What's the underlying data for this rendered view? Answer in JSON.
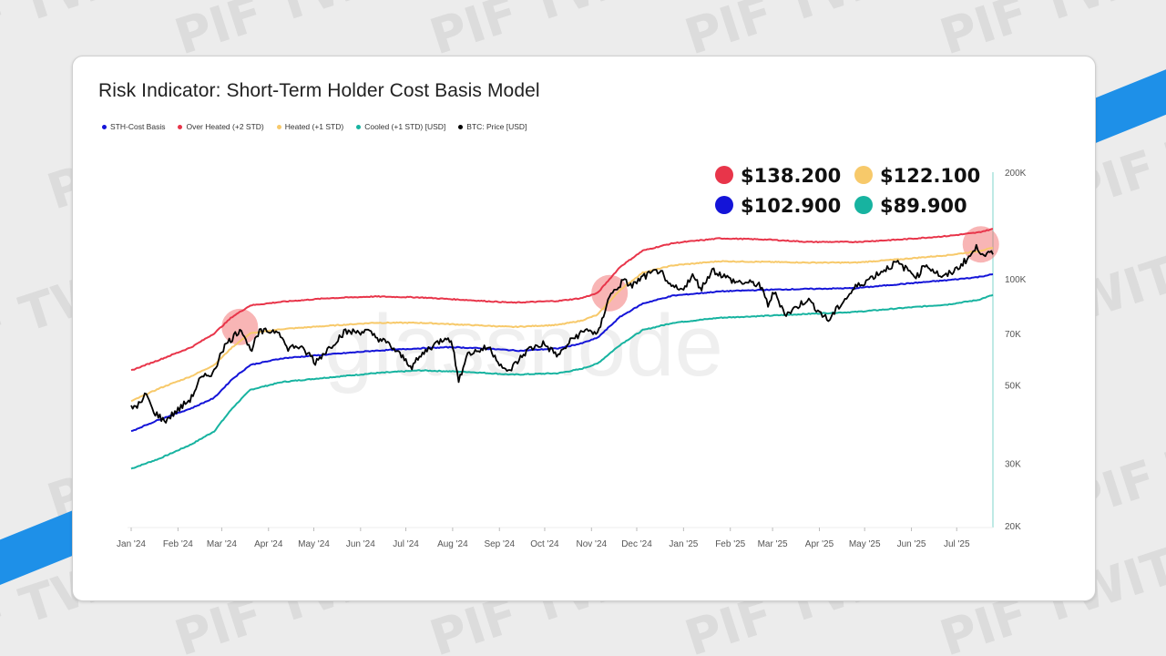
{
  "watermark_text": "PIF TWIT",
  "chart_data": {
    "type": "line",
    "title": "Risk Indicator: Short-Term Holder Cost Basis Model",
    "watermark": "glassnode",
    "y_scale": "log",
    "ylim": [
      20000,
      200000
    ],
    "y_ticks": [
      {
        "value": 200000,
        "label": "200K"
      },
      {
        "value": 100000,
        "label": "100K"
      },
      {
        "value": 70000,
        "label": "70K"
      },
      {
        "value": 50000,
        "label": "50K"
      },
      {
        "value": 30000,
        "label": "30K"
      },
      {
        "value": 20000,
        "label": "20K"
      }
    ],
    "x_range": [
      "2024-01-01",
      "2025-07-25"
    ],
    "x_ticks": [
      {
        "date": "2024-01-01",
        "label": "Jan '24"
      },
      {
        "date": "2024-02-01",
        "label": "Feb '24"
      },
      {
        "date": "2024-03-01",
        "label": "Mar '24"
      },
      {
        "date": "2024-04-01",
        "label": "Apr '24"
      },
      {
        "date": "2024-05-01",
        "label": "May '24"
      },
      {
        "date": "2024-06-01",
        "label": "Jun '24"
      },
      {
        "date": "2024-07-01",
        "label": "Jul '24"
      },
      {
        "date": "2024-08-01",
        "label": "Aug '24"
      },
      {
        "date": "2024-09-01",
        "label": "Sep '24"
      },
      {
        "date": "2024-10-01",
        "label": "Oct '24"
      },
      {
        "date": "2024-11-01",
        "label": "Nov '24"
      },
      {
        "date": "2024-12-01",
        "label": "Dec '24"
      },
      {
        "date": "2025-01-01",
        "label": "Jan '25"
      },
      {
        "date": "2025-02-01",
        "label": "Feb '25"
      },
      {
        "date": "2025-03-01",
        "label": "Mar '25"
      },
      {
        "date": "2025-04-01",
        "label": "Apr '25"
      },
      {
        "date": "2025-05-01",
        "label": "May '25"
      },
      {
        "date": "2025-06-01",
        "label": "Jun '25"
      },
      {
        "date": "2025-07-01",
        "label": "Jul '25"
      }
    ],
    "series": [
      {
        "name": "STH-Cost Basis",
        "color": "#1414d8",
        "key": "sth",
        "points": [
          [
            "2024-01-01",
            37000
          ],
          [
            "2024-01-20",
            40000
          ],
          [
            "2024-02-10",
            43000
          ],
          [
            "2024-02-25",
            46000
          ],
          [
            "2024-03-08",
            52000
          ],
          [
            "2024-03-20",
            57000
          ],
          [
            "2024-04-10",
            59500
          ],
          [
            "2024-05-10",
            61000
          ],
          [
            "2024-06-10",
            62500
          ],
          [
            "2024-07-10",
            63500
          ],
          [
            "2024-08-01",
            64000
          ],
          [
            "2024-08-20",
            63500
          ],
          [
            "2024-09-15",
            62500
          ],
          [
            "2024-10-10",
            63500
          ],
          [
            "2024-10-25",
            65500
          ],
          [
            "2024-11-05",
            68000
          ],
          [
            "2024-11-20",
            78000
          ],
          [
            "2024-12-05",
            85000
          ],
          [
            "2024-12-25",
            89500
          ],
          [
            "2025-01-25",
            92000
          ],
          [
            "2025-02-25",
            93000
          ],
          [
            "2025-03-25",
            93500
          ],
          [
            "2025-04-25",
            94000
          ],
          [
            "2025-05-25",
            96500
          ],
          [
            "2025-06-25",
            99000
          ],
          [
            "2025-07-15",
            101000
          ],
          [
            "2025-07-25",
            102900
          ]
        ]
      },
      {
        "name": "Over Heated (+2 STD)",
        "color": "#e8354a",
        "key": "over",
        "points": [
          [
            "2024-01-01",
            55000
          ],
          [
            "2024-01-20",
            59000
          ],
          [
            "2024-02-10",
            64000
          ],
          [
            "2024-02-25",
            70000
          ],
          [
            "2024-03-08",
            78000
          ],
          [
            "2024-03-20",
            84000
          ],
          [
            "2024-04-10",
            86000
          ],
          [
            "2024-05-10",
            88000
          ],
          [
            "2024-06-10",
            89000
          ],
          [
            "2024-07-10",
            88500
          ],
          [
            "2024-08-10",
            87000
          ],
          [
            "2024-09-10",
            85500
          ],
          [
            "2024-10-10",
            86500
          ],
          [
            "2024-10-25",
            88000
          ],
          [
            "2024-11-05",
            91000
          ],
          [
            "2024-11-20",
            108000
          ],
          [
            "2024-12-05",
            120000
          ],
          [
            "2024-12-25",
            126000
          ],
          [
            "2025-01-25",
            130000
          ],
          [
            "2025-02-25",
            129000
          ],
          [
            "2025-03-25",
            127000
          ],
          [
            "2025-04-25",
            127000
          ],
          [
            "2025-05-25",
            129000
          ],
          [
            "2025-06-25",
            132000
          ],
          [
            "2025-07-15",
            135000
          ],
          [
            "2025-07-25",
            138200
          ]
        ]
      },
      {
        "name": "Heated (+1 STD)",
        "color": "#f7c96a",
        "key": "heated",
        "points": [
          [
            "2024-01-01",
            45000
          ],
          [
            "2024-01-20",
            49000
          ],
          [
            "2024-02-10",
            53000
          ],
          [
            "2024-02-25",
            57000
          ],
          [
            "2024-03-08",
            64000
          ],
          [
            "2024-03-20",
            70000
          ],
          [
            "2024-04-10",
            72000
          ],
          [
            "2024-05-10",
            73500
          ],
          [
            "2024-06-10",
            75000
          ],
          [
            "2024-07-10",
            75000
          ],
          [
            "2024-08-10",
            74000
          ],
          [
            "2024-09-10",
            73000
          ],
          [
            "2024-10-10",
            74000
          ],
          [
            "2024-10-25",
            76000
          ],
          [
            "2024-11-05",
            79000
          ],
          [
            "2024-11-20",
            93000
          ],
          [
            "2024-12-05",
            104000
          ],
          [
            "2024-12-25",
            109000
          ],
          [
            "2025-01-25",
            112000
          ],
          [
            "2025-02-25",
            111500
          ],
          [
            "2025-03-25",
            111000
          ],
          [
            "2025-04-25",
            111000
          ],
          [
            "2025-05-25",
            113500
          ],
          [
            "2025-06-25",
            116500
          ],
          [
            "2025-07-15",
            119500
          ],
          [
            "2025-07-25",
            122100
          ]
        ]
      },
      {
        "name": "Cooled (+1 STD) [USD]",
        "color": "#17b3a0",
        "key": "cooled",
        "points": [
          [
            "2024-01-01",
            29000
          ],
          [
            "2024-01-20",
            31000
          ],
          [
            "2024-02-10",
            34000
          ],
          [
            "2024-02-25",
            37000
          ],
          [
            "2024-03-08",
            43000
          ],
          [
            "2024-03-20",
            48500
          ],
          [
            "2024-04-10",
            51000
          ],
          [
            "2024-05-10",
            52500
          ],
          [
            "2024-06-10",
            54000
          ],
          [
            "2024-07-10",
            55000
          ],
          [
            "2024-08-10",
            54500
          ],
          [
            "2024-09-10",
            53500
          ],
          [
            "2024-10-10",
            54000
          ],
          [
            "2024-10-25",
            55500
          ],
          [
            "2024-11-05",
            57500
          ],
          [
            "2024-11-20",
            65000
          ],
          [
            "2024-12-05",
            71500
          ],
          [
            "2024-12-25",
            75000
          ],
          [
            "2025-01-25",
            77500
          ],
          [
            "2025-02-25",
            78500
          ],
          [
            "2025-03-25",
            79500
          ],
          [
            "2025-04-25",
            80500
          ],
          [
            "2025-05-25",
            82500
          ],
          [
            "2025-06-25",
            84500
          ],
          [
            "2025-07-15",
            87000
          ],
          [
            "2025-07-25",
            89900
          ]
        ]
      },
      {
        "name": "BTC: Price [USD]",
        "color": "#000000",
        "key": "btc",
        "points": [
          [
            "2024-01-01",
            43000
          ],
          [
            "2024-01-08",
            44500
          ],
          [
            "2024-01-11",
            47500
          ],
          [
            "2024-01-15",
            42500
          ],
          [
            "2024-01-23",
            39500
          ],
          [
            "2024-02-01",
            42500
          ],
          [
            "2024-02-10",
            46000
          ],
          [
            "2024-02-15",
            51500
          ],
          [
            "2024-02-26",
            55000
          ],
          [
            "2024-02-29",
            62000
          ],
          [
            "2024-03-05",
            66000
          ],
          [
            "2024-03-08",
            68000
          ],
          [
            "2024-03-14",
            72500
          ],
          [
            "2024-03-20",
            62500
          ],
          [
            "2024-03-26",
            70500
          ],
          [
            "2024-04-08",
            71500
          ],
          [
            "2024-04-13",
            63500
          ],
          [
            "2024-04-20",
            64500
          ],
          [
            "2024-04-30",
            60000
          ],
          [
            "2024-05-01",
            57500
          ],
          [
            "2024-05-10",
            63000
          ],
          [
            "2024-05-21",
            70500
          ],
          [
            "2024-06-05",
            71000
          ],
          [
            "2024-06-20",
            65000
          ],
          [
            "2024-07-05",
            56500
          ],
          [
            "2024-07-15",
            63000
          ],
          [
            "2024-07-29",
            69000
          ],
          [
            "2024-08-02",
            62000
          ],
          [
            "2024-08-05",
            50500
          ],
          [
            "2024-08-10",
            61000
          ],
          [
            "2024-08-25",
            64000
          ],
          [
            "2024-09-06",
            54000
          ],
          [
            "2024-09-20",
            63000
          ],
          [
            "2024-09-30",
            65500
          ],
          [
            "2024-10-10",
            60500
          ],
          [
            "2024-10-20",
            68000
          ],
          [
            "2024-10-30",
            72000
          ],
          [
            "2024-11-05",
            69000
          ],
          [
            "2024-11-08",
            76000
          ],
          [
            "2024-11-12",
            88000
          ],
          [
            "2024-11-22",
            98500
          ],
          [
            "2024-11-28",
            95500
          ],
          [
            "2024-12-05",
            101000
          ],
          [
            "2024-12-17",
            106000
          ],
          [
            "2024-12-20",
            97000
          ],
          [
            "2024-12-30",
            92500
          ],
          [
            "2025-01-07",
            101500
          ],
          [
            "2025-01-13",
            94000
          ],
          [
            "2025-01-20",
            106000
          ],
          [
            "2025-01-27",
            102000
          ],
          [
            "2025-02-04",
            98000
          ],
          [
            "2025-02-20",
            96500
          ],
          [
            "2025-02-26",
            84500
          ],
          [
            "2025-03-02",
            91500
          ],
          [
            "2025-03-10",
            79000
          ],
          [
            "2025-03-24",
            87500
          ],
          [
            "2025-04-07",
            76000
          ],
          [
            "2025-04-15",
            84500
          ],
          [
            "2025-04-25",
            94500
          ],
          [
            "2025-05-10",
            103500
          ],
          [
            "2025-05-22",
            111000
          ],
          [
            "2025-06-05",
            101500
          ],
          [
            "2025-06-10",
            110000
          ],
          [
            "2025-06-22",
            100500
          ],
          [
            "2025-07-01",
            106500
          ],
          [
            "2025-07-10",
            116000
          ],
          [
            "2025-07-14",
            122000
          ],
          [
            "2025-07-20",
            117500
          ],
          [
            "2025-07-25",
            117000
          ]
        ]
      }
    ],
    "value_labels": [
      {
        "text": "$138.200",
        "color": "#e8354a"
      },
      {
        "text": "$122.100",
        "color": "#f7c96a"
      },
      {
        "text": "$102.900",
        "color": "#1414d8"
      },
      {
        "text": "$89.900",
        "color": "#17b3a0"
      }
    ],
    "highlights": [
      {
        "date": "2024-03-13",
        "value": 73000
      },
      {
        "date": "2024-11-13",
        "value": 91000
      },
      {
        "date": "2025-07-17",
        "value": 125000
      }
    ]
  }
}
